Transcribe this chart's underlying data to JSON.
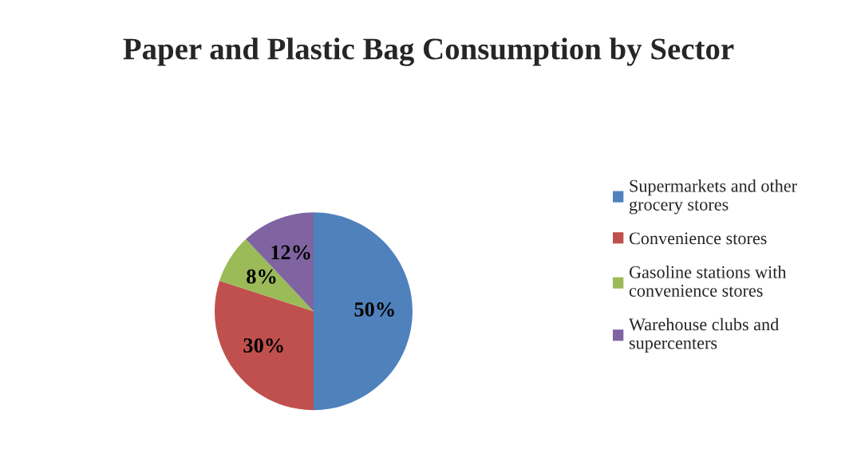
{
  "chart_data": {
    "type": "pie",
    "title": "Paper and Plastic Bag Consumption by Sector",
    "categories": [
      "Supermarkets and other\ngrocery stores",
      "Convenience stores",
      "Gasoline stations with\nconvenience stores",
      "Warehouse clubs and\nsupercenters"
    ],
    "values": [
      50,
      30,
      8,
      12
    ],
    "colors": [
      "#4f81bd",
      "#c0504d",
      "#9bbb59",
      "#8064a2"
    ],
    "value_labels": [
      "50%",
      "30%",
      "8%",
      "12%"
    ],
    "legend": "right"
  }
}
